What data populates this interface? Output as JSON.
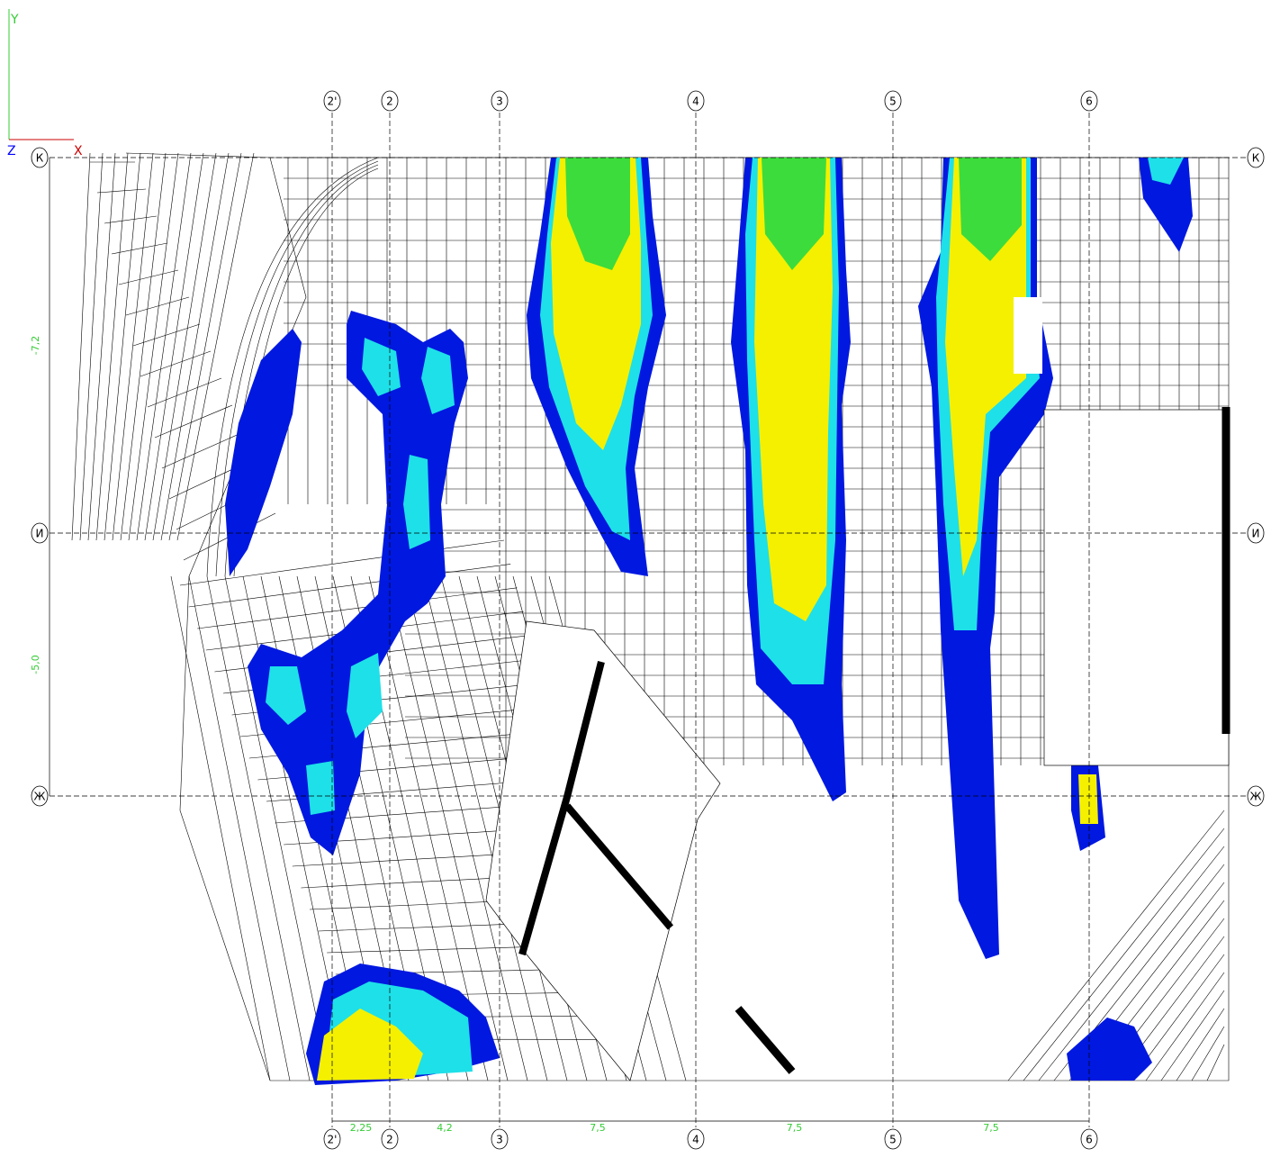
{
  "axes_triad": {
    "y": "Y",
    "z": "Z",
    "x": "X"
  },
  "grid_columns": [
    "2'",
    "2",
    "3",
    "4",
    "5",
    "6"
  ],
  "grid_rows": [
    "К",
    "И",
    "Ж"
  ],
  "dimensions": {
    "vertical": [
      "-7,2",
      "-5,0"
    ],
    "horizontal": [
      "2,25",
      "4,2",
      "7,5",
      "7,5",
      "7,5"
    ]
  }
}
